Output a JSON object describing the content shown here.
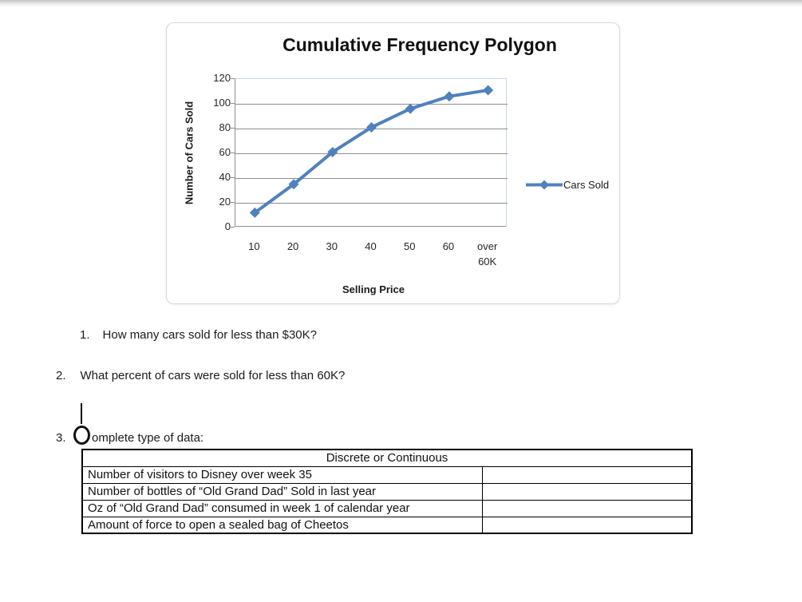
{
  "chart_data": {
    "type": "line",
    "title": "Cumulative Frequency Polygon",
    "xlabel": "Selling Price",
    "ylabel": "Number of Cars Sold",
    "categories": [
      "10",
      "20",
      "30",
      "40",
      "50",
      "60",
      "over 60K"
    ],
    "x_tick_labels": [
      "10",
      "20",
      "30",
      "40",
      "50",
      "60",
      "over\n60K"
    ],
    "series": [
      {
        "name": "Cars Sold",
        "color": "#4F81BD",
        "values": [
          12,
          35,
          61,
          81,
          96,
          106,
          111
        ]
      }
    ],
    "ylim": [
      0,
      120
    ],
    "yticks": [
      0,
      20,
      40,
      60,
      80,
      100,
      120
    ],
    "grid": true,
    "gridline_color": "#8f8f8f",
    "legend_position": "right",
    "marker": "diamond"
  },
  "questions": {
    "q1": {
      "number": "1.",
      "text": "How many cars sold for less than $30K?"
    },
    "q2": {
      "number": "2.",
      "text": "What percent of cars were sold for less than 60K?"
    },
    "q3": {
      "number": "3.",
      "text_after_circle": "omplete type of data:"
    }
  },
  "table": {
    "header": "Discrete or Continuous",
    "rows": [
      {
        "label": "Number of visitors to Disney over week 35",
        "answer": ""
      },
      {
        "label": "Number of bottles of “Old Grand Dad” Sold in last year",
        "answer": ""
      },
      {
        "label": "Oz of “Old Grand Dad” consumed in week 1 of calendar year",
        "answer": ""
      },
      {
        "label": "Amount of force to open a sealed bag of Cheetos",
        "answer": ""
      }
    ]
  }
}
